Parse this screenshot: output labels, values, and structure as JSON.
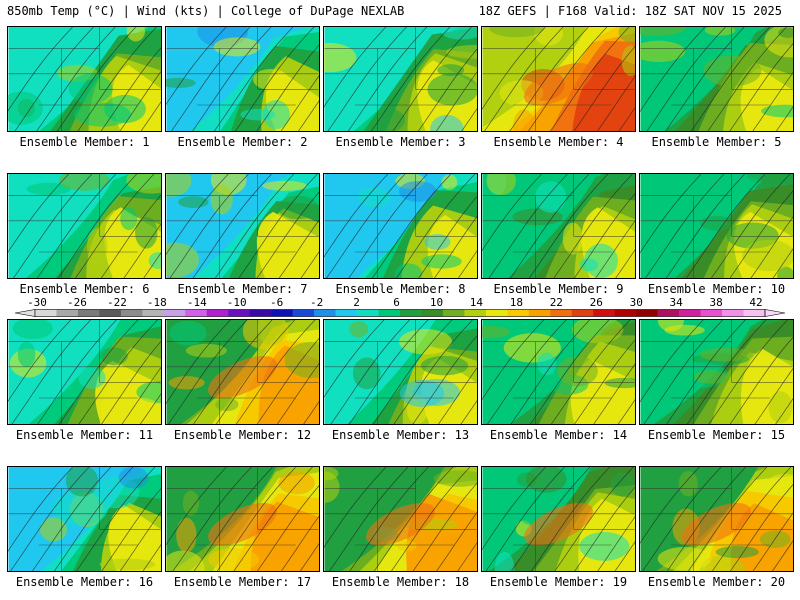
{
  "header": {
    "left": "850mb Temp (°C) | Wind (kts) | College of DuPage NEXLAB",
    "right": "18Z GEFS | F168 Valid: 18Z SAT NOV 15 2025"
  },
  "panels": [
    {
      "label": "Ensemble Member: 1",
      "base": "cool",
      "warm": 0.2
    },
    {
      "label": "Ensemble Member: 2",
      "base": "cold",
      "warm": 0.1
    },
    {
      "label": "Ensemble Member: 3",
      "base": "cool",
      "warm": 0.2
    },
    {
      "label": "Ensemble Member: 4",
      "base": "hot",
      "warm": 0.9
    },
    {
      "label": "Ensemble Member: 5",
      "base": "mild",
      "warm": 0.3
    },
    {
      "label": "Ensemble Member: 6",
      "base": "cool",
      "warm": 0.2
    },
    {
      "label": "Ensemble Member: 7",
      "base": "cold",
      "warm": 0.2
    },
    {
      "label": "Ensemble Member: 8",
      "base": "cold",
      "warm": 0.3
    },
    {
      "label": "Ensemble Member: 9",
      "base": "mild",
      "warm": 0.2
    },
    {
      "label": "Ensemble Member: 10",
      "base": "mild",
      "warm": 0.2
    },
    {
      "label": "Ensemble Member: 11",
      "base": "cool",
      "warm": 0.3
    },
    {
      "label": "Ensemble Member: 12",
      "base": "warm",
      "warm": 0.7
    },
    {
      "label": "Ensemble Member: 13",
      "base": "cool",
      "warm": 0.2
    },
    {
      "label": "Ensemble Member: 14",
      "base": "mild",
      "warm": 0.4
    },
    {
      "label": "Ensemble Member: 15",
      "base": "mild",
      "warm": 0.5
    },
    {
      "label": "Ensemble Member: 16",
      "base": "cold",
      "warm": 0.2
    },
    {
      "label": "Ensemble Member: 17",
      "base": "warm",
      "warm": 0.7
    },
    {
      "label": "Ensemble Member: 18",
      "base": "warm",
      "warm": 0.6
    },
    {
      "label": "Ensemble Member: 19",
      "base": "mild",
      "warm": 0.6
    },
    {
      "label": "Ensemble Member: 20",
      "base": "warm",
      "warm": 0.6
    }
  ],
  "colorbar": {
    "tick_labels": [
      "-30",
      "-26",
      "-22",
      "-18",
      "-14",
      "-10",
      "-6",
      "-2",
      "2",
      "6",
      "10",
      "14",
      "18",
      "22",
      "26",
      "30",
      "34",
      "38",
      "42"
    ],
    "colors": [
      "#d8d8d8",
      "#a8a8a8",
      "#7a7a7a",
      "#5a5a5a",
      "#8c8c8c",
      "#b4b4b4",
      "#c8a0e8",
      "#d060e8",
      "#b020d0",
      "#6a10c0",
      "#3a0aa8",
      "#1010b8",
      "#1a4ad8",
      "#1e90e8",
      "#20c8f0",
      "#10e0c0",
      "#00c878",
      "#20a040",
      "#3a8c28",
      "#70b020",
      "#b0d010",
      "#e8e810",
      "#f8c800",
      "#f8a000",
      "#f07010",
      "#e04010",
      "#d01010",
      "#b00000",
      "#900000",
      "#b01060",
      "#d020a0",
      "#e850d0",
      "#f090e8",
      "#f8c0f0"
    ]
  }
}
